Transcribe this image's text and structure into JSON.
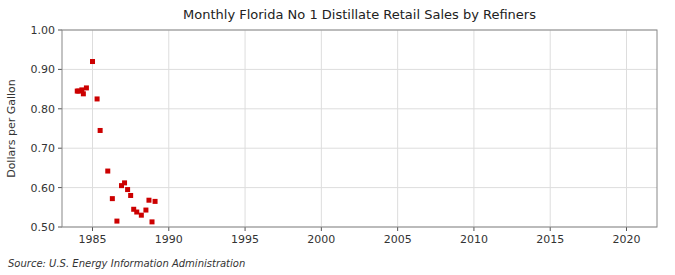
{
  "chart_data": {
    "type": "scatter",
    "title": "Monthly Florida No 1 Distillate Retail Sales by Refiners",
    "ylabel": "Dollars per Gallon",
    "source": "Source: U.S. Energy Information Administration",
    "color": "#cc0000",
    "marker": "square",
    "grid": true,
    "xlim": [
      1983,
      2022
    ],
    "ylim": [
      0.5,
      1.0
    ],
    "xticks": [
      1985,
      1990,
      1995,
      2000,
      2005,
      2010,
      2015,
      2020
    ],
    "yticks": [
      {
        "value": 0.5,
        "label": "0.50"
      },
      {
        "value": 0.6,
        "label": "0.60"
      },
      {
        "value": 0.7,
        "label": "0.70"
      },
      {
        "value": 0.8,
        "label": "0.80"
      },
      {
        "value": 0.9,
        "label": "0.90"
      },
      {
        "value": 1.0,
        "label": "1.00"
      }
    ],
    "x": [
      1984.0,
      1984.1,
      1984.3,
      1984.4,
      1984.6,
      1985.0,
      1985.3,
      1985.5,
      1986.0,
      1986.3,
      1986.6,
      1986.9,
      1987.1,
      1987.3,
      1987.5,
      1987.7,
      1987.9,
      1988.2,
      1988.5,
      1988.7,
      1988.9,
      1989.1
    ],
    "values": [
      0.845,
      0.845,
      0.848,
      0.838,
      0.853,
      0.92,
      0.825,
      0.745,
      0.642,
      0.572,
      0.515,
      0.605,
      0.612,
      0.595,
      0.58,
      0.545,
      0.538,
      0.53,
      0.543,
      0.568,
      0.513,
      0.565
    ]
  }
}
